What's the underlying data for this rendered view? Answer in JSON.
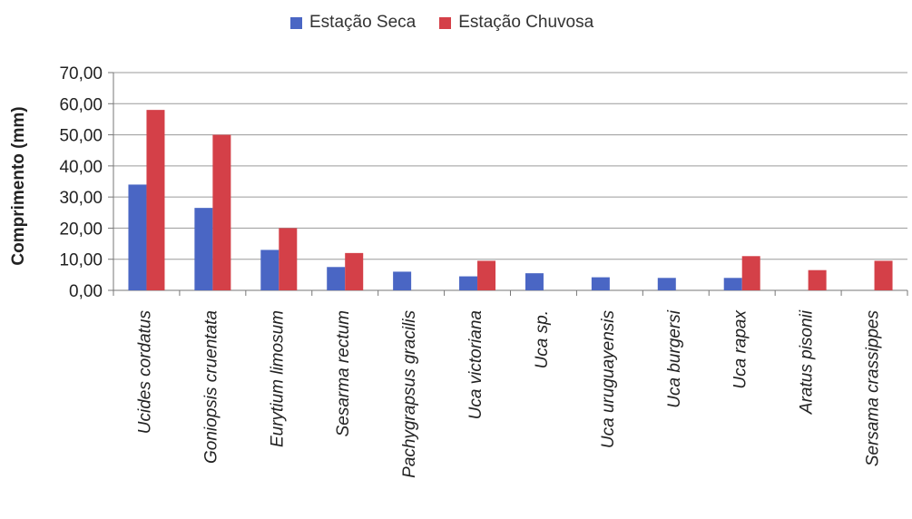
{
  "chart_data": {
    "type": "bar",
    "title": "",
    "xlabel": "",
    "ylabel": "Comprimento (mm)",
    "ylim": [
      0,
      70
    ],
    "yticks": [
      "0,00",
      "10,00",
      "20,00",
      "30,00",
      "40,00",
      "50,00",
      "60,00",
      "70,00"
    ],
    "ytick_values": [
      0,
      10,
      20,
      30,
      40,
      50,
      60,
      70
    ],
    "grid": true,
    "legend_position": "top-center",
    "categories": [
      "Ucides cordatus",
      "Goniopsis cruentata",
      "Eurytium limosum",
      "Sesarma rectum",
      "Pachygrapsus gracilis",
      "Uca victoriana",
      "Uca sp.",
      "Uca uruguayensis",
      "Uca burgersi",
      "Uca rapax",
      "Aratus pisonii",
      "Sersama crassippes"
    ],
    "series": [
      {
        "name": "Estação Seca",
        "color": "#4a66c4",
        "values": [
          34,
          26.5,
          13,
          7.5,
          6,
          4.5,
          5.5,
          4.2,
          4,
          4,
          0,
          0
        ]
      },
      {
        "name": "Estação Chuvosa",
        "color": "#d44048",
        "values": [
          58,
          50,
          20,
          12,
          0,
          9.5,
          0,
          0,
          0,
          11,
          6.5,
          9.5
        ]
      }
    ]
  }
}
